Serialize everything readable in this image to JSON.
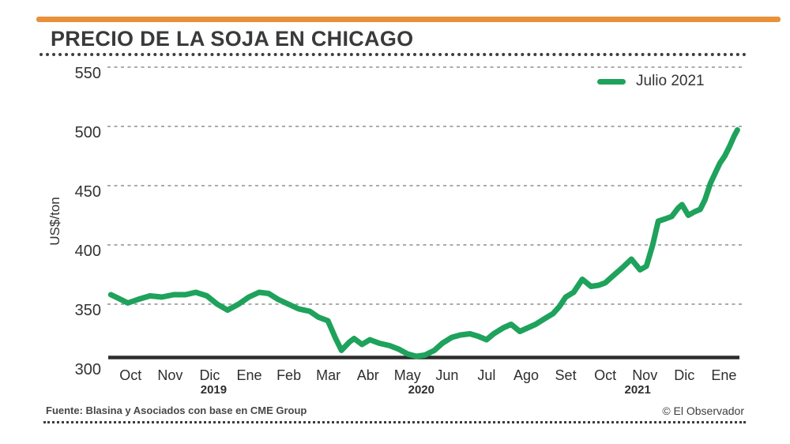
{
  "header": {
    "title": "PRECIO DE LA SOJA EN CHICAGO"
  },
  "legend": {
    "label": "Julio 2021"
  },
  "footer": {
    "source": "Fuente: Blasina y Asociados con base en CME Group",
    "credit": "© El Observador"
  },
  "colors": {
    "accent_orange": "#e8913a",
    "line_green": "#1ea25c",
    "grid": "#8f8f8f",
    "axis": "#2d2d2d",
    "text_dark": "#3a3a3a"
  },
  "chart_data": {
    "type": "line",
    "title": "PRECIO DE LA SOJA EN CHICAGO",
    "ylabel": "US$/ton",
    "series_name": "Julio 2021",
    "legend_position": "top-right",
    "grid": "horizontal dashed",
    "y_ticks": [
      300,
      350,
      400,
      450,
      500,
      550
    ],
    "ylim": [
      305,
      560
    ],
    "months": [
      "Oct",
      "Nov",
      "Dic",
      "Ene",
      "Feb",
      "Mar",
      "Abr",
      "May",
      "Jun",
      "Jul",
      "Ago",
      "Set",
      "Oct",
      "Nov",
      "Dic",
      "Ene"
    ],
    "year_labels": [
      {
        "label": "2019",
        "month_index": 2.1
      },
      {
        "label": "2020",
        "month_index": 7.35
      },
      {
        "label": "2021",
        "month_index": 12.82
      }
    ],
    "points": [
      [
        -0.5,
        358
      ],
      [
        -0.31,
        355
      ],
      [
        -0.07,
        351
      ],
      [
        0.19,
        354
      ],
      [
        0.49,
        357
      ],
      [
        0.79,
        356
      ],
      [
        1.09,
        358
      ],
      [
        1.39,
        358
      ],
      [
        1.65,
        360
      ],
      [
        1.93,
        357
      ],
      [
        2.19,
        350
      ],
      [
        2.45,
        345
      ],
      [
        2.73,
        350
      ],
      [
        2.99,
        356
      ],
      [
        3.25,
        360
      ],
      [
        3.49,
        359
      ],
      [
        3.73,
        354
      ],
      [
        3.99,
        350
      ],
      [
        4.25,
        346
      ],
      [
        4.53,
        344
      ],
      [
        4.75,
        339
      ],
      [
        4.99,
        336
      ],
      [
        5.17,
        322
      ],
      [
        5.33,
        311
      ],
      [
        5.53,
        318
      ],
      [
        5.65,
        321
      ],
      [
        5.85,
        316
      ],
      [
        6.05,
        320
      ],
      [
        6.29,
        317
      ],
      [
        6.55,
        315
      ],
      [
        6.78,
        312
      ],
      [
        7.0,
        308
      ],
      [
        7.22,
        306
      ],
      [
        7.44,
        307
      ],
      [
        7.68,
        311
      ],
      [
        7.88,
        317
      ],
      [
        8.12,
        322
      ],
      [
        8.34,
        324
      ],
      [
        8.58,
        325
      ],
      [
        8.78,
        323
      ],
      [
        9.0,
        320
      ],
      [
        9.18,
        325
      ],
      [
        9.42,
        330
      ],
      [
        9.62,
        333
      ],
      [
        9.84,
        327
      ],
      [
        10.04,
        330
      ],
      [
        10.24,
        333
      ],
      [
        10.48,
        338
      ],
      [
        10.68,
        342
      ],
      [
        10.84,
        348
      ],
      [
        11.0,
        356
      ],
      [
        11.2,
        360
      ],
      [
        11.42,
        371
      ],
      [
        11.64,
        365
      ],
      [
        11.84,
        366
      ],
      [
        12.0,
        368
      ],
      [
        12.2,
        374
      ],
      [
        12.44,
        381
      ],
      [
        12.66,
        388
      ],
      [
        12.88,
        379
      ],
      [
        13.04,
        382
      ],
      [
        13.2,
        400
      ],
      [
        13.34,
        420
      ],
      [
        13.52,
        422
      ],
      [
        13.68,
        424
      ],
      [
        13.84,
        431
      ],
      [
        13.94,
        434
      ],
      [
        14.1,
        425
      ],
      [
        14.26,
        428
      ],
      [
        14.4,
        430
      ],
      [
        14.52,
        438
      ],
      [
        14.66,
        452
      ],
      [
        14.8,
        462
      ],
      [
        14.9,
        469
      ],
      [
        15.02,
        475
      ],
      [
        15.14,
        483
      ],
      [
        15.26,
        492
      ],
      [
        15.34,
        497
      ]
    ]
  }
}
